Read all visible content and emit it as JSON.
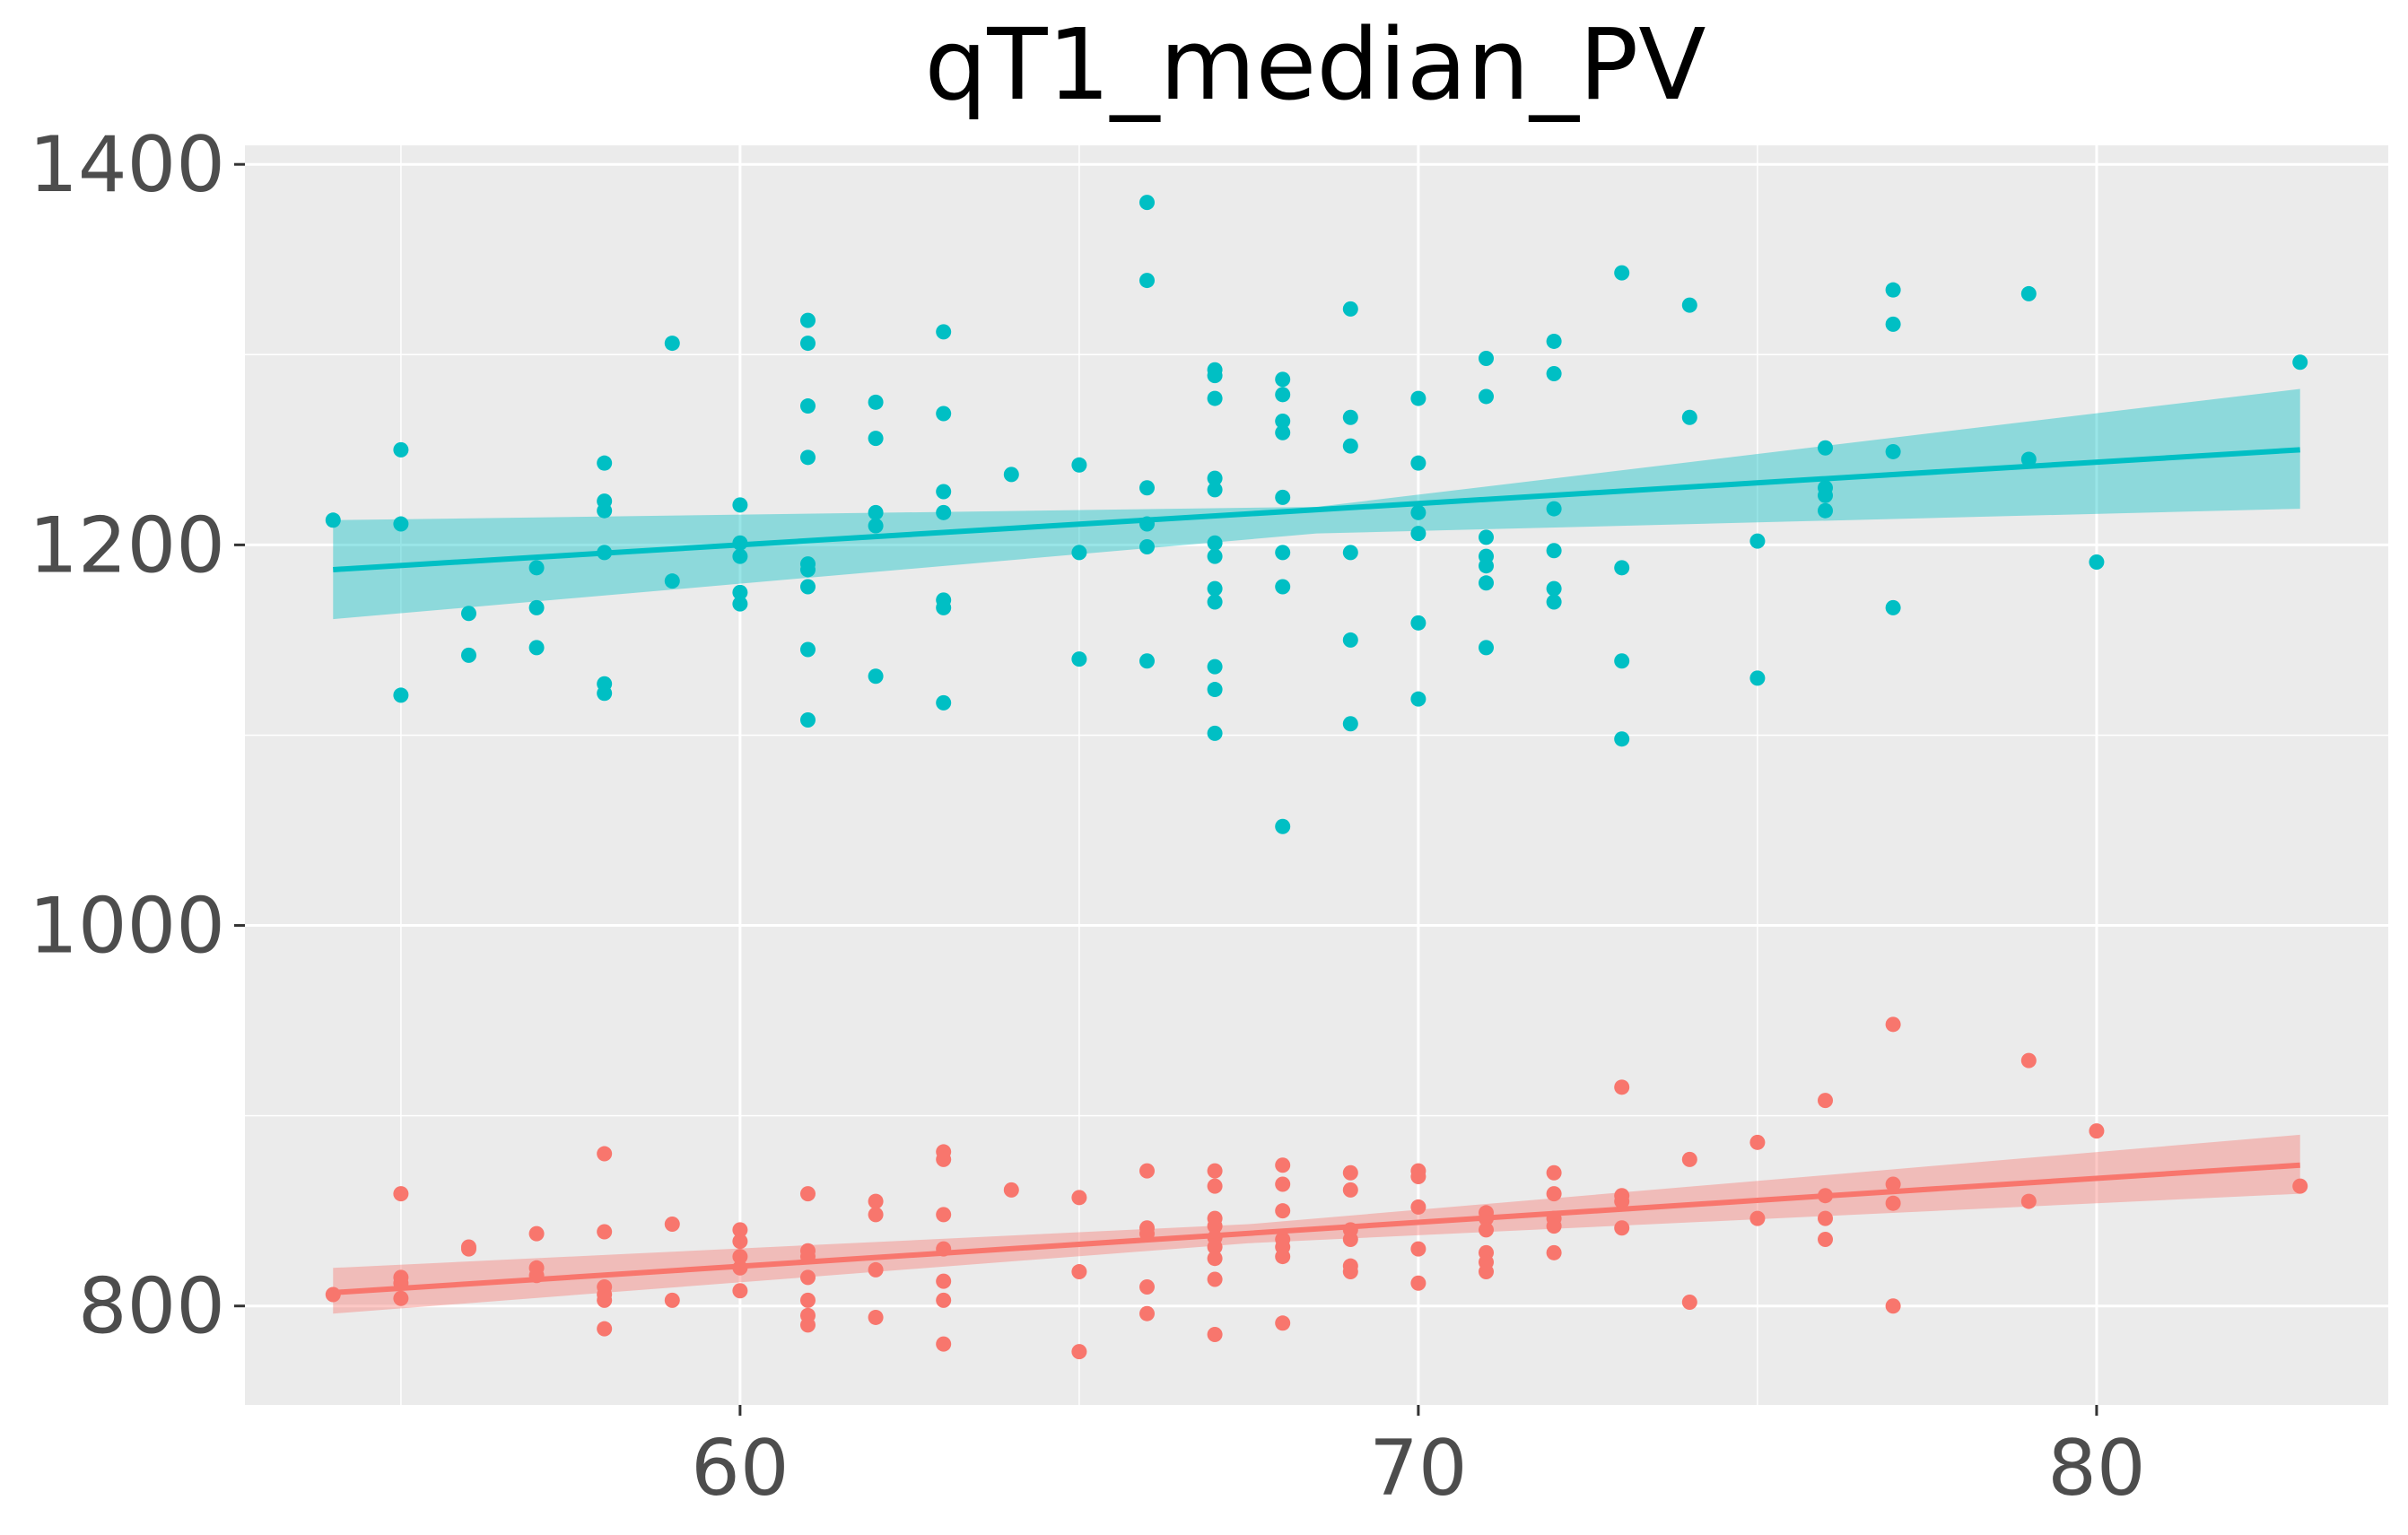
{
  "chart_data": {
    "type": "scatter",
    "title": "qT1_median_PV",
    "xlabel": "",
    "ylabel": "",
    "xlim": [
      52.7,
      84.3
    ],
    "ylim": [
      748,
      1410
    ],
    "x_ticks": [
      60,
      70,
      80
    ],
    "y_ticks": [
      800,
      1000,
      1200,
      1400
    ],
    "x_tick_labels": [
      "60",
      "70",
      "80"
    ],
    "y_tick_labels": [
      "800",
      "1000",
      "1200",
      "1400"
    ],
    "grid": true,
    "legend": "none",
    "colors": {
      "panel": "#ebebeb",
      "grid": "#ffffff",
      "tick_text": "#4d4d4d",
      "title": "#000000"
    },
    "series": [
      {
        "color": "#00bfc4",
        "fit": {
          "x": [
            54,
            83
          ],
          "y": [
            1187,
            1250
          ],
          "ci_low": [
            1161,
            1219
          ],
          "ci_high": [
            1213,
            1282
          ],
          "ci_mid": [
            {
              "x": 68.5,
              "y": 1213,
              "lo": 1206,
              "hi": 1220
            }
          ]
        },
        "points": [
          [
            54,
            1213
          ],
          [
            55,
            1250
          ],
          [
            55,
            1211
          ],
          [
            55,
            1121
          ],
          [
            56,
            1164
          ],
          [
            56,
            1142
          ],
          [
            57,
            1188
          ],
          [
            57,
            1167
          ],
          [
            57,
            1146
          ],
          [
            58,
            1243
          ],
          [
            58,
            1223
          ],
          [
            58,
            1218
          ],
          [
            58,
            1196
          ],
          [
            58,
            1127
          ],
          [
            58,
            1122
          ],
          [
            59,
            1306
          ],
          [
            59,
            1181
          ],
          [
            60,
            1221
          ],
          [
            60,
            1201
          ],
          [
            60,
            1194
          ],
          [
            60,
            1175
          ],
          [
            60,
            1169
          ],
          [
            61,
            1318
          ],
          [
            61,
            1306
          ],
          [
            61,
            1273
          ],
          [
            61,
            1246
          ],
          [
            61,
            1190
          ],
          [
            61,
            1187
          ],
          [
            61,
            1178
          ],
          [
            61,
            1145
          ],
          [
            61,
            1108
          ],
          [
            62,
            1275
          ],
          [
            62,
            1256
          ],
          [
            62,
            1217
          ],
          [
            62,
            1210
          ],
          [
            62,
            1131
          ],
          [
            63,
            1312
          ],
          [
            63,
            1269
          ],
          [
            63,
            1228
          ],
          [
            63,
            1217
          ],
          [
            63,
            1171
          ],
          [
            63,
            1167
          ],
          [
            63,
            1117
          ],
          [
            64,
            1237
          ],
          [
            65,
            1242
          ],
          [
            65,
            1196
          ],
          [
            65,
            1140
          ],
          [
            66,
            1380
          ],
          [
            66,
            1339
          ],
          [
            66,
            1230
          ],
          [
            66,
            1211
          ],
          [
            66,
            1199
          ],
          [
            66,
            1139
          ],
          [
            67,
            1292
          ],
          [
            67,
            1289
          ],
          [
            67,
            1277
          ],
          [
            67,
            1235
          ],
          [
            67,
            1229
          ],
          [
            67,
            1201
          ],
          [
            67,
            1194
          ],
          [
            67,
            1177
          ],
          [
            67,
            1170
          ],
          [
            67,
            1136
          ],
          [
            67,
            1124
          ],
          [
            67,
            1101
          ],
          [
            68,
            1287
          ],
          [
            68,
            1279
          ],
          [
            68,
            1265
          ],
          [
            68,
            1259
          ],
          [
            68,
            1225
          ],
          [
            68,
            1196
          ],
          [
            68,
            1178
          ],
          [
            68,
            1052
          ],
          [
            69,
            1324
          ],
          [
            69,
            1267
          ],
          [
            69,
            1252
          ],
          [
            69,
            1196
          ],
          [
            69,
            1150
          ],
          [
            69,
            1106
          ],
          [
            70,
            1277
          ],
          [
            70,
            1243
          ],
          [
            70,
            1217
          ],
          [
            70,
            1206
          ],
          [
            70,
            1159
          ],
          [
            70,
            1119
          ],
          [
            71,
            1298
          ],
          [
            71,
            1278
          ],
          [
            71,
            1204
          ],
          [
            71,
            1194
          ],
          [
            71,
            1189
          ],
          [
            71,
            1180
          ],
          [
            71,
            1146
          ],
          [
            72,
            1307
          ],
          [
            72,
            1290
          ],
          [
            72,
            1219
          ],
          [
            72,
            1197
          ],
          [
            72,
            1177
          ],
          [
            72,
            1170
          ],
          [
            73,
            1343
          ],
          [
            73,
            1188
          ],
          [
            73,
            1139
          ],
          [
            73,
            1098
          ],
          [
            74,
            1326
          ],
          [
            74,
            1267
          ],
          [
            75,
            1202
          ],
          [
            75,
            1130
          ],
          [
            76,
            1251
          ],
          [
            76,
            1230
          ],
          [
            76,
            1226
          ],
          [
            76,
            1218
          ],
          [
            77,
            1334
          ],
          [
            77,
            1316
          ],
          [
            77,
            1249
          ],
          [
            77,
            1167
          ],
          [
            79,
            1332
          ],
          [
            79,
            1245
          ],
          [
            80,
            1191
          ],
          [
            83,
            1296
          ]
        ]
      },
      {
        "color": "#f8766d",
        "fit": {
          "x": [
            54,
            83
          ],
          "y": [
            807,
            874
          ],
          "ci_low": [
            796,
            859
          ],
          "ci_high": [
            820,
            890
          ],
          "ci_mid": [
            {
              "x": 67.5,
              "y": 838,
              "lo": 833,
              "hi": 843
            }
          ]
        },
        "points": [
          [
            54,
            806
          ],
          [
            55,
            859
          ],
          [
            55,
            815
          ],
          [
            55,
            812
          ],
          [
            55,
            804
          ],
          [
            56,
            831
          ],
          [
            56,
            830
          ],
          [
            57,
            838
          ],
          [
            57,
            820
          ],
          [
            57,
            816
          ],
          [
            58,
            880
          ],
          [
            58,
            839
          ],
          [
            58,
            810
          ],
          [
            58,
            806
          ],
          [
            58,
            803
          ],
          [
            58,
            788
          ],
          [
            59,
            843
          ],
          [
            59,
            803
          ],
          [
            60,
            840
          ],
          [
            60,
            834
          ],
          [
            60,
            826
          ],
          [
            60,
            820
          ],
          [
            60,
            808
          ],
          [
            61,
            859
          ],
          [
            61,
            829
          ],
          [
            61,
            826
          ],
          [
            61,
            815
          ],
          [
            61,
            803
          ],
          [
            61,
            795
          ],
          [
            61,
            790
          ],
          [
            62,
            855
          ],
          [
            62,
            848
          ],
          [
            62,
            819
          ],
          [
            62,
            794
          ],
          [
            63,
            881
          ],
          [
            63,
            877
          ],
          [
            63,
            848
          ],
          [
            63,
            830
          ],
          [
            63,
            813
          ],
          [
            63,
            803
          ],
          [
            63,
            780
          ],
          [
            64,
            861
          ],
          [
            65,
            857
          ],
          [
            65,
            818
          ],
          [
            65,
            776
          ],
          [
            66,
            871
          ],
          [
            66,
            841
          ],
          [
            66,
            838
          ],
          [
            66,
            810
          ],
          [
            66,
            796
          ],
          [
            67,
            871
          ],
          [
            67,
            863
          ],
          [
            67,
            846
          ],
          [
            67,
            842
          ],
          [
            67,
            836
          ],
          [
            67,
            831
          ],
          [
            67,
            825
          ],
          [
            67,
            814
          ],
          [
            67,
            785
          ],
          [
            68,
            874
          ],
          [
            68,
            864
          ],
          [
            68,
            850
          ],
          [
            68,
            835
          ],
          [
            68,
            831
          ],
          [
            68,
            826
          ],
          [
            68,
            791
          ],
          [
            69,
            870
          ],
          [
            69,
            861
          ],
          [
            69,
            840
          ],
          [
            69,
            835
          ],
          [
            69,
            821
          ],
          [
            69,
            818
          ],
          [
            70,
            871
          ],
          [
            70,
            868
          ],
          [
            70,
            852
          ],
          [
            70,
            830
          ],
          [
            70,
            812
          ],
          [
            71,
            849
          ],
          [
            71,
            846
          ],
          [
            71,
            840
          ],
          [
            71,
            828
          ],
          [
            71,
            823
          ],
          [
            71,
            818
          ],
          [
            72,
            870
          ],
          [
            72,
            859
          ],
          [
            72,
            846
          ],
          [
            72,
            842
          ],
          [
            72,
            828
          ],
          [
            73,
            915
          ],
          [
            73,
            858
          ],
          [
            73,
            855
          ],
          [
            73,
            841
          ],
          [
            74,
            877
          ],
          [
            74,
            802
          ],
          [
            75,
            886
          ],
          [
            75,
            846
          ],
          [
            76,
            908
          ],
          [
            76,
            858
          ],
          [
            76,
            846
          ],
          [
            76,
            835
          ],
          [
            77,
            948
          ],
          [
            77,
            864
          ],
          [
            77,
            854
          ],
          [
            77,
            800
          ],
          [
            79,
            929
          ],
          [
            79,
            855
          ],
          [
            80,
            892
          ],
          [
            83,
            863
          ]
        ]
      }
    ]
  }
}
